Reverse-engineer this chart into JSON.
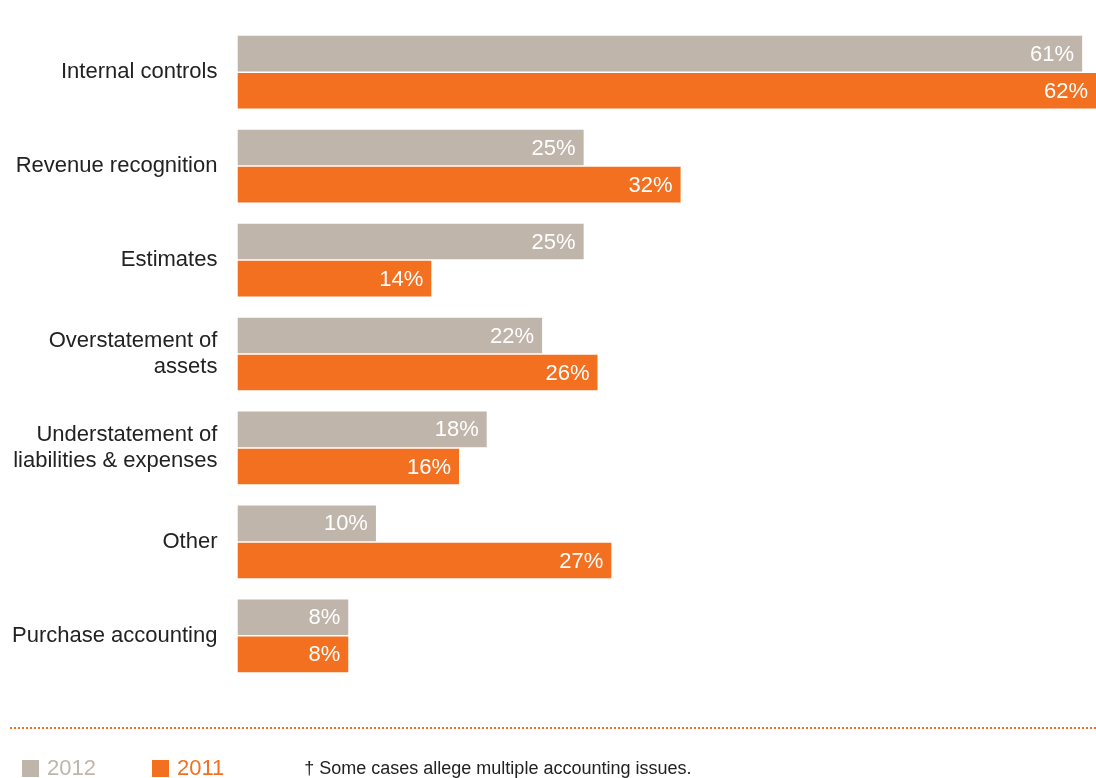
{
  "chart_data": {
    "type": "bar",
    "orientation": "horizontal",
    "categories": [
      "Internal controls",
      "Revenue recognition",
      "Estimates",
      "Overstatement of assets",
      "Understatement of liabilities & expenses",
      "Other",
      "Purchase accounting"
    ],
    "series": [
      {
        "name": "2012",
        "color": "#c0b5ab",
        "values": [
          61,
          25,
          25,
          22,
          18,
          10,
          8
        ],
        "value_labels": [
          "61%",
          "25%",
          "25%",
          "22%",
          "18%",
          "10%",
          "8%"
        ]
      },
      {
        "name": "2011",
        "color": "#f37021",
        "values": [
          62,
          32,
          14,
          26,
          16,
          27,
          8
        ],
        "value_labels": [
          "62%",
          "32%",
          "14%",
          "26%",
          "16%",
          "27%",
          "8%"
        ]
      }
    ],
    "legend": "bottom left",
    "annotations": [
      "† Some cases allege multiple accounting issues."
    ]
  }
}
